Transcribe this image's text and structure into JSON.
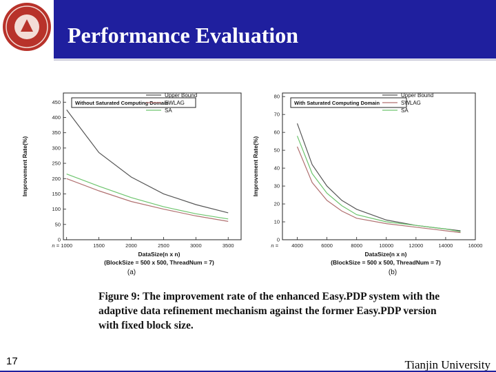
{
  "slide": {
    "title": "Performance Evaluation",
    "caption": "Figure 9: The improvement rate of the enhanced Easy.PDP system with the adaptive data refinement mechanism against the former Easy.PDP version with fixed block size.",
    "page_number": "17",
    "footer": "Tianjin University",
    "colors": {
      "banner": "#1f1f9e",
      "upper_bound": "#555555",
      "swlag": "#b07070",
      "sa": "#6cc46c"
    }
  },
  "chart_data": [
    {
      "type": "line",
      "panel_label": "(a)",
      "box_label": "Without Saturated Computing Domain",
      "xlabel": "DataSize(n x n)",
      "xlabel_sub": "(BlockSize = 500 x 500, ThreadNum = 7)",
      "ylabel": "Improvement Rate(%)",
      "x_prefix": "n =",
      "x_ticks": [
        1000,
        1500,
        2000,
        2500,
        3000,
        3500
      ],
      "y_ticks": [
        0,
        50,
        100,
        150,
        200,
        250,
        300,
        350,
        400,
        450
      ],
      "xlim": [
        950,
        3700
      ],
      "ylim": [
        0,
        480
      ],
      "legend_position": "top-right",
      "series": [
        {
          "name": "Upper Bound",
          "color": "#555555",
          "x": [
            1000,
            1500,
            2000,
            2500,
            3000,
            3500
          ],
          "values": [
            425,
            285,
            205,
            150,
            115,
            88
          ]
        },
        {
          "name": "SWLAG",
          "color": "#b07070",
          "x": [
            1000,
            1500,
            2000,
            2500,
            3000,
            3500
          ],
          "values": [
            200,
            160,
            125,
            100,
            78,
            60
          ]
        },
        {
          "name": "SA",
          "color": "#6cc46c",
          "x": [
            1000,
            1500,
            2000,
            2500,
            3000,
            3500
          ],
          "values": [
            215,
            175,
            138,
            108,
            85,
            68
          ]
        }
      ]
    },
    {
      "type": "line",
      "panel_label": "(b)",
      "box_label": "With Saturated Computing Domain",
      "xlabel": "DataSize(n x n)",
      "xlabel_sub": "(BlockSize = 500 x 500, ThreadNum = 7)",
      "ylabel": "Improvement Rate(%)",
      "x_prefix": "n = ",
      "x_ticks": [
        4000,
        6000,
        8000,
        10000,
        12000,
        14000,
        16000
      ],
      "y_ticks": [
        0,
        10,
        20,
        30,
        40,
        50,
        60,
        70,
        80
      ],
      "xlim": [
        3000,
        16000
      ],
      "ylim": [
        0,
        82
      ],
      "legend_position": "top-right",
      "series": [
        {
          "name": "Upper Bound",
          "color": "#555555",
          "x": [
            4000,
            5000,
            6000,
            7000,
            8000,
            10000,
            12000,
            14000,
            15000
          ],
          "values": [
            65,
            42,
            30,
            22,
            17,
            11,
            8,
            6,
            5
          ]
        },
        {
          "name": "SWLAG",
          "color": "#b07070",
          "x": [
            4000,
            5000,
            6000,
            7000,
            8000,
            10000,
            12000,
            14000,
            15000
          ],
          "values": [
            52,
            32,
            22,
            16,
            12,
            9,
            7,
            5,
            4
          ]
        },
        {
          "name": "SA",
          "color": "#6cc46c",
          "x": [
            4000,
            5000,
            6000,
            7000,
            8000,
            10000,
            12000,
            14000,
            15000
          ],
          "values": [
            58,
            37,
            26,
            19,
            14,
            10,
            8,
            6,
            4.5
          ]
        }
      ]
    }
  ]
}
